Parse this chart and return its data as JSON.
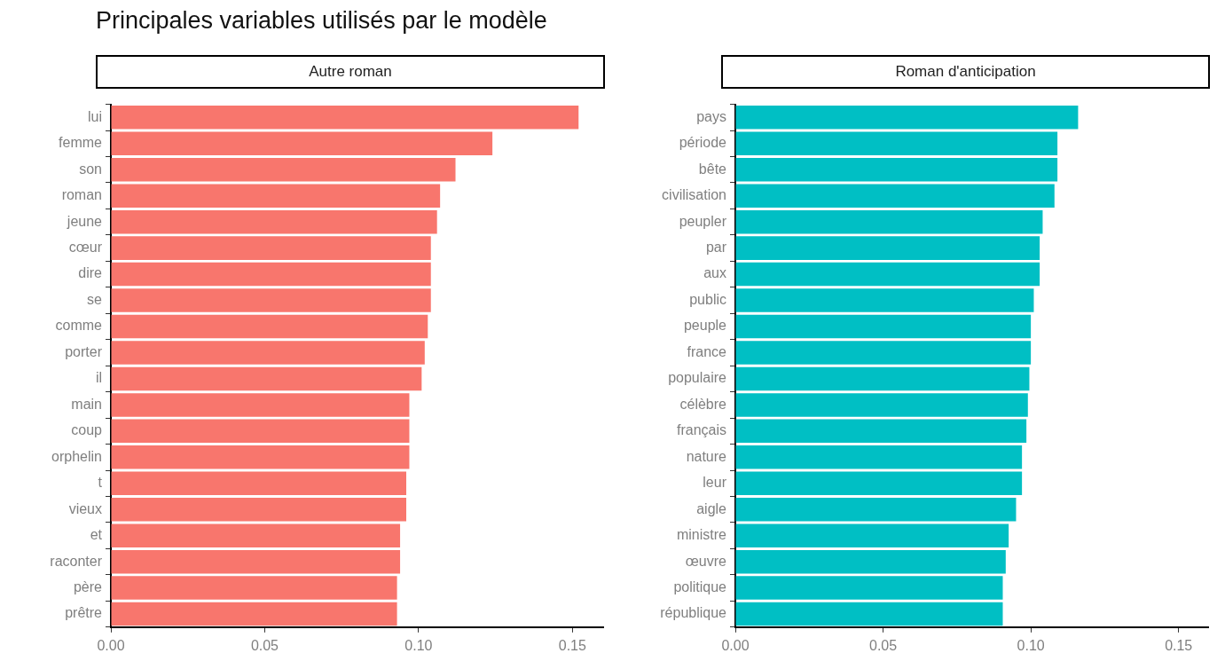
{
  "chart_data": [
    {
      "type": "bar",
      "orientation": "horizontal",
      "title": "Principales variables utilisés par le modèle",
      "subtitle": "Autre roman",
      "categories": [
        "lui",
        "femme",
        "son",
        "roman",
        "jeune",
        "cœur",
        "dire",
        "se",
        "comme",
        "porter",
        "il",
        "main",
        "coup",
        "orphelin",
        "t",
        "vieux",
        "et",
        "raconter",
        "père",
        "prêtre"
      ],
      "values": [
        0.152,
        0.124,
        0.112,
        0.107,
        0.106,
        0.104,
        0.104,
        0.104,
        0.103,
        0.102,
        0.101,
        0.097,
        0.097,
        0.097,
        0.096,
        0.096,
        0.094,
        0.094,
        0.093,
        0.093
      ],
      "color": "#f8766d",
      "xlim": [
        0,
        0.16
      ],
      "xticks": [
        {
          "value": 0,
          "label": "0.00"
        },
        {
          "value": 0.05,
          "label": "0.05"
        },
        {
          "value": 0.1,
          "label": "0.10"
        },
        {
          "value": 0.15,
          "label": "0.15"
        }
      ],
      "grid": false
    },
    {
      "type": "bar",
      "orientation": "horizontal",
      "subtitle": "Roman d'anticipation",
      "categories": [
        "pays",
        "période",
        "bête",
        "civilisation",
        "peupler",
        "par",
        "aux",
        "public",
        "peuple",
        "france",
        "populaire",
        "célèbre",
        "français",
        "nature",
        "leur",
        "aigle",
        "ministre",
        "œuvre",
        "politique",
        "république"
      ],
      "values": [
        0.116,
        0.109,
        0.109,
        0.108,
        0.104,
        0.103,
        0.103,
        0.101,
        0.1,
        0.1,
        0.0995,
        0.099,
        0.0985,
        0.097,
        0.097,
        0.095,
        0.0925,
        0.0915,
        0.0905,
        0.0905
      ],
      "color": "#00bfc4",
      "xlim": [
        0,
        0.16
      ],
      "xticks": [
        {
          "value": 0,
          "label": "0.00"
        },
        {
          "value": 0.05,
          "label": "0.05"
        },
        {
          "value": 0.1,
          "label": "0.10"
        },
        {
          "value": 0.15,
          "label": "0.15"
        }
      ],
      "grid": false
    }
  ]
}
